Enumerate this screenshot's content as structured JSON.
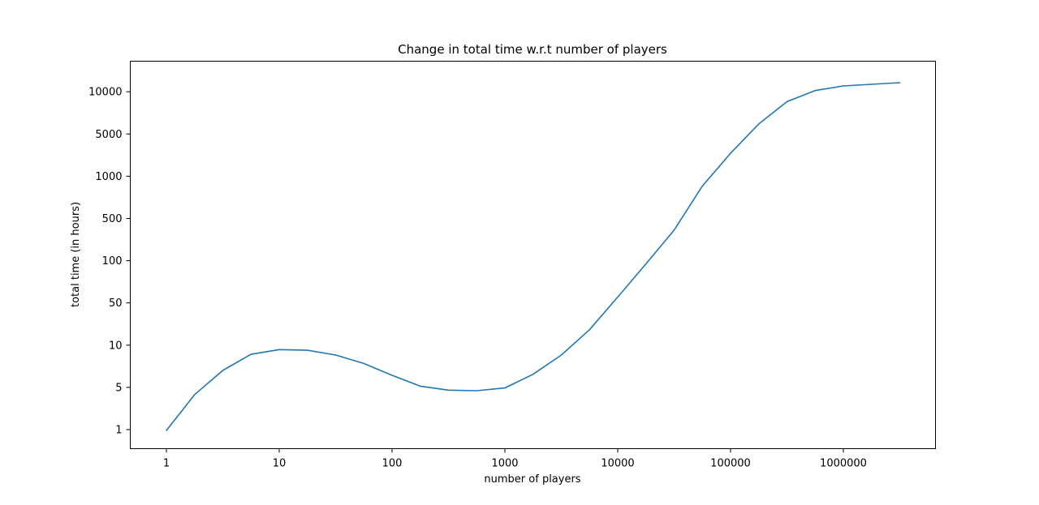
{
  "chart_data": {
    "type": "line",
    "title": "Change in total time w.r.t number of players",
    "xlabel": "number of players",
    "ylabel": "total time (in hours)",
    "x_scale": "log",
    "y_scale": "categorical-ticks",
    "grid": false,
    "legend": "none",
    "xticks": [
      "1",
      "10",
      "100",
      "1000",
      "10000",
      "100000",
      "1000000"
    ],
    "yticks": [
      "1",
      "5",
      "10",
      "50",
      "100",
      "500",
      "1000",
      "5000",
      "10000"
    ],
    "series": [
      {
        "color": "#1f77b4",
        "x": [
          1,
          1.78,
          3.16,
          5.62,
          10,
          17.8,
          31.6,
          56.2,
          100,
          178,
          316,
          562,
          1000,
          1780,
          3160,
          5620,
          10000,
          17800,
          31600,
          56200,
          100000,
          178000,
          316000,
          562000,
          1000000,
          3160000
        ],
        "y": [
          0.97,
          3.8,
          6.6,
          8.6,
          9.3,
          9.2,
          8.5,
          7.4,
          6.1,
          5.1,
          4.5,
          4.4,
          4.9,
          6.2,
          8.5,
          18,
          55,
          95,
          320,
          850,
          2400,
          5900,
          8500,
          10200,
          11000,
          11600
        ]
      }
    ]
  }
}
